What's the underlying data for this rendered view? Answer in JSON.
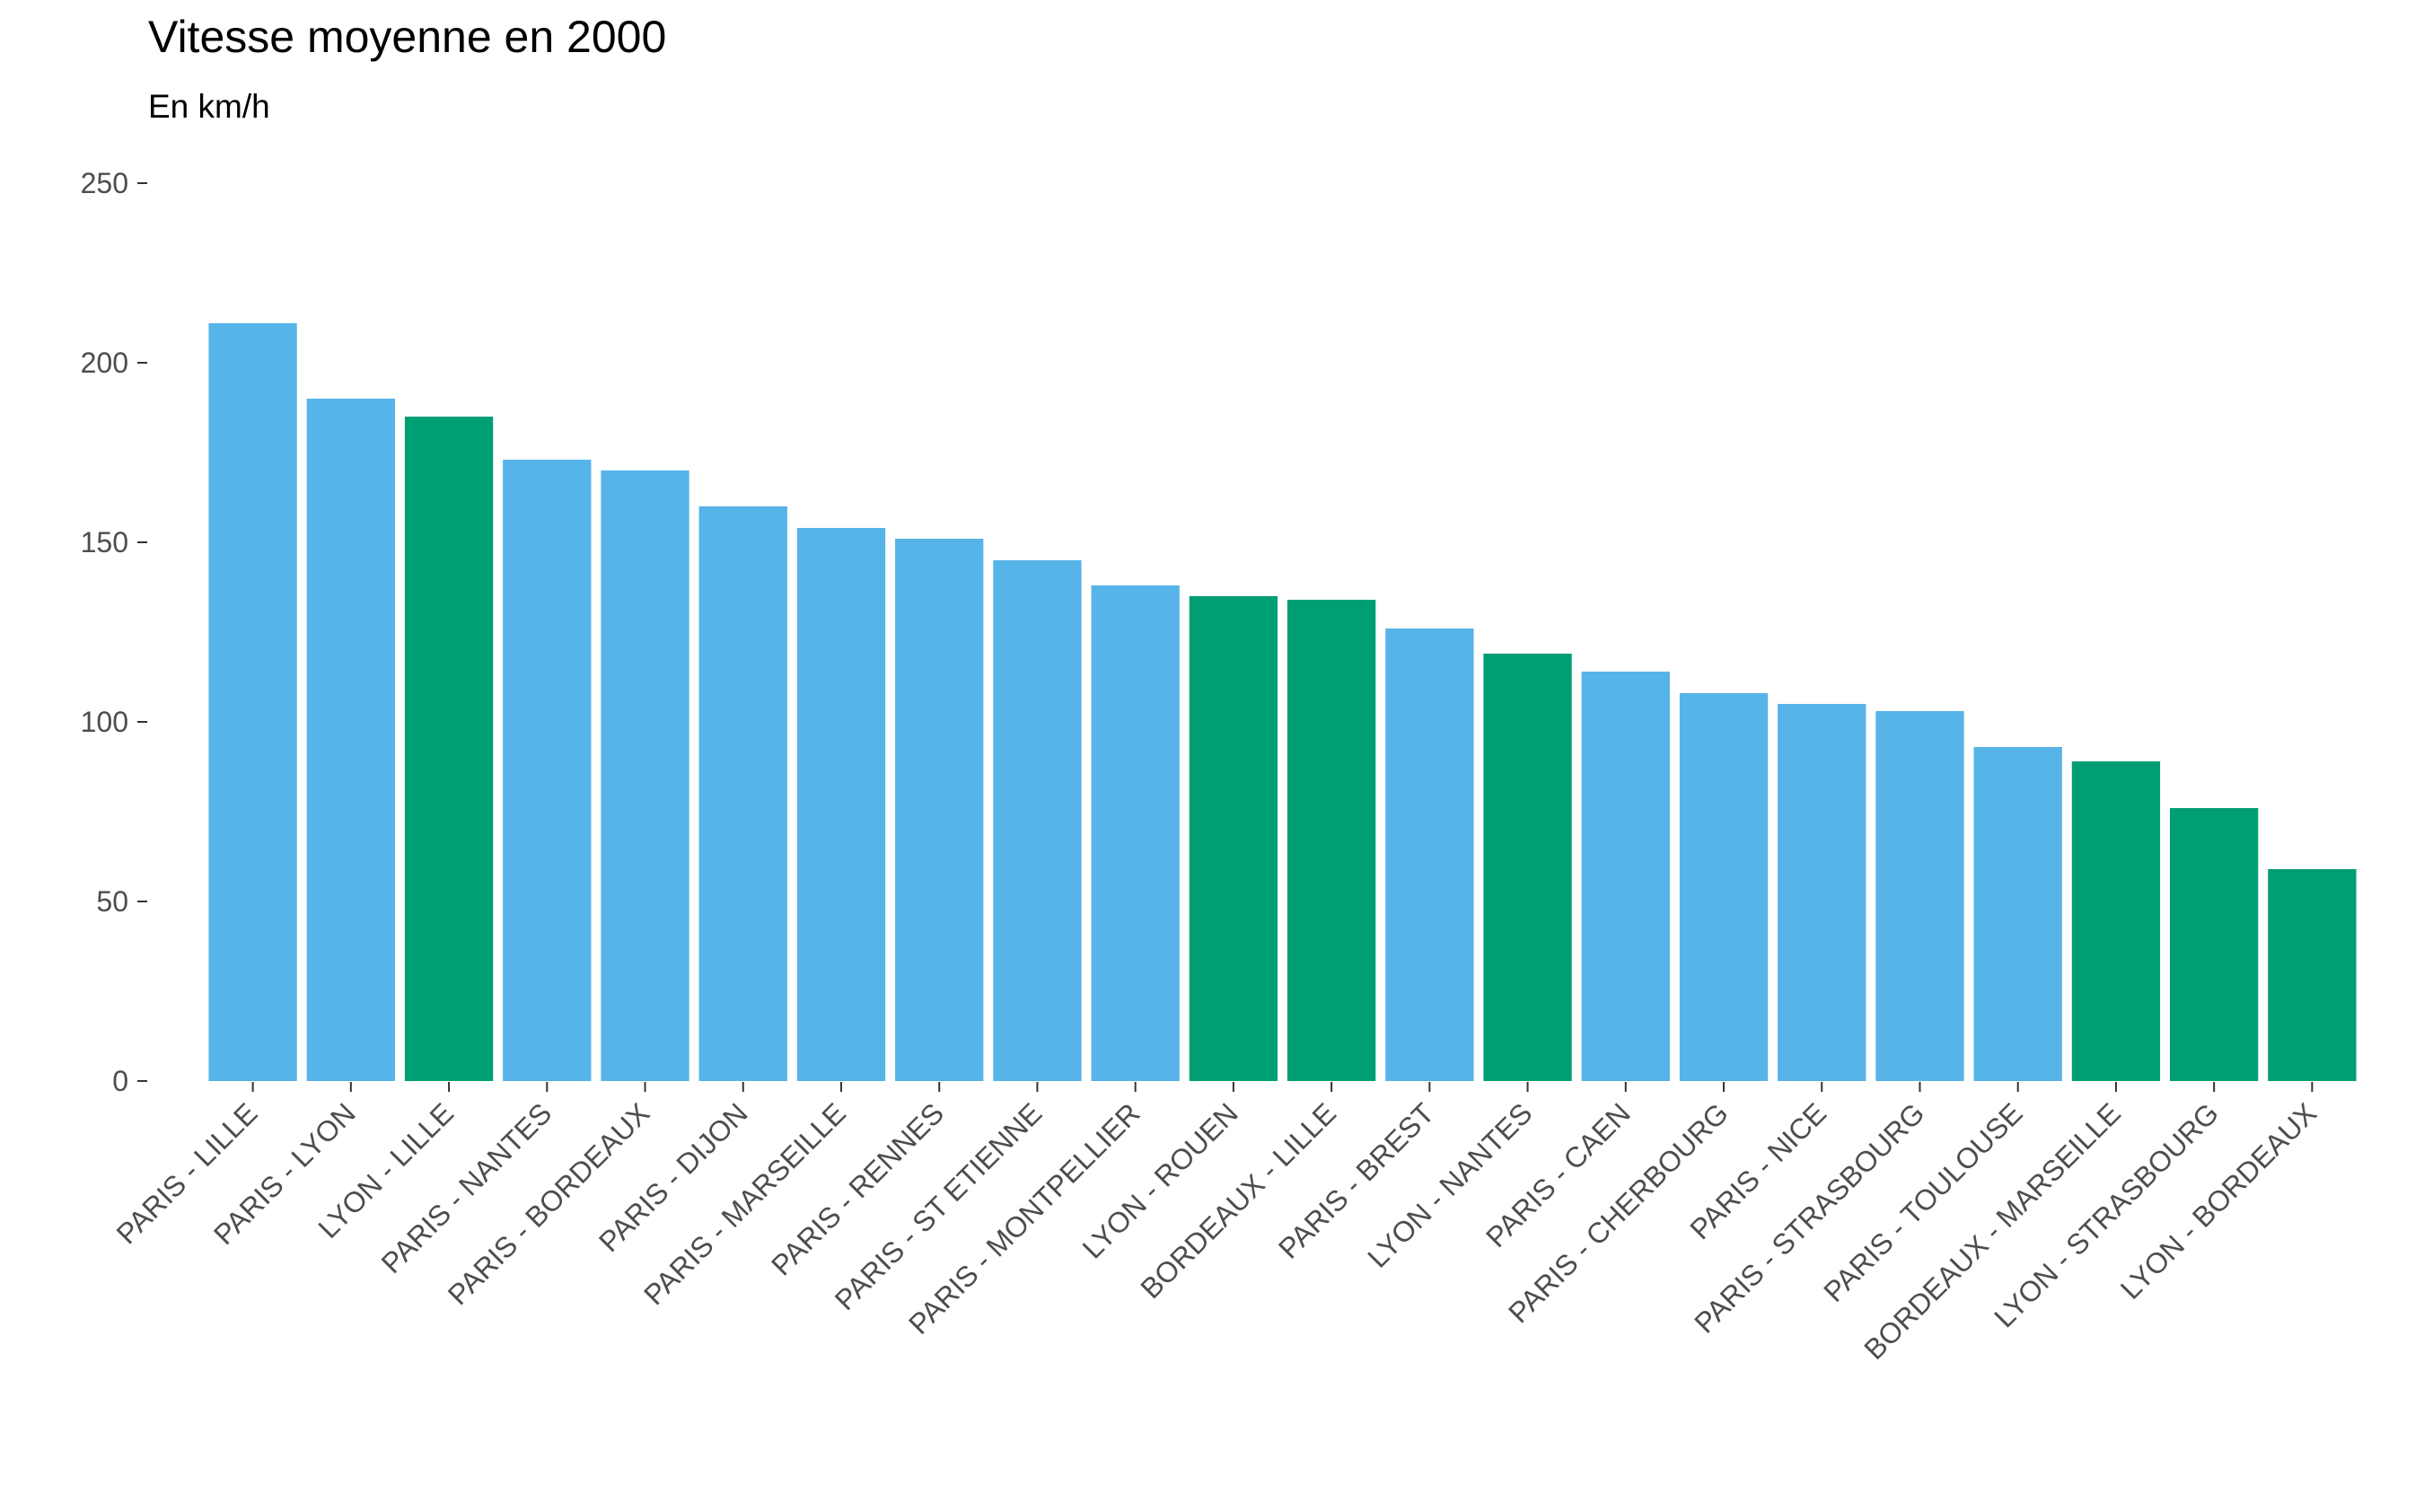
{
  "chart_data": {
    "type": "bar",
    "title": "Vitesse moyenne en 2000",
    "subtitle": "En km/h",
    "xlabel": "",
    "ylabel": "",
    "ylim": [
      0,
      250
    ],
    "yticks": [
      0,
      50,
      100,
      150,
      200,
      250
    ],
    "grid": false,
    "legend": "none",
    "colors": {
      "blue": "#56B4E9",
      "green": "#009E73"
    },
    "categories": [
      "PARIS - LILLE",
      "PARIS - LYON",
      "LYON - LILLE",
      "PARIS - NANTES",
      "PARIS - BORDEAUX",
      "PARIS - DIJON",
      "PARIS - MARSEILLE",
      "PARIS - RENNES",
      "PARIS - ST ETIENNE",
      "PARIS - MONTPELLIER",
      "LYON - ROUEN",
      "BORDEAUX - LILLE",
      "PARIS - BREST",
      "LYON - NANTES",
      "PARIS - CAEN",
      "PARIS - CHERBOURG",
      "PARIS - NICE",
      "PARIS - STRASBOURG",
      "PARIS - TOULOUSE",
      "BORDEAUX - MARSEILLE",
      "LYON - STRASBOURG",
      "LYON - BORDEAUX"
    ],
    "values": [
      211,
      190,
      185,
      173,
      170,
      160,
      154,
      151,
      145,
      138,
      135,
      134,
      126,
      119,
      114,
      108,
      105,
      103,
      93,
      89,
      76,
      59
    ],
    "bar_colors": [
      "blue",
      "blue",
      "green",
      "blue",
      "blue",
      "blue",
      "blue",
      "blue",
      "blue",
      "blue",
      "green",
      "green",
      "blue",
      "green",
      "blue",
      "blue",
      "blue",
      "blue",
      "blue",
      "green",
      "green",
      "green"
    ]
  }
}
